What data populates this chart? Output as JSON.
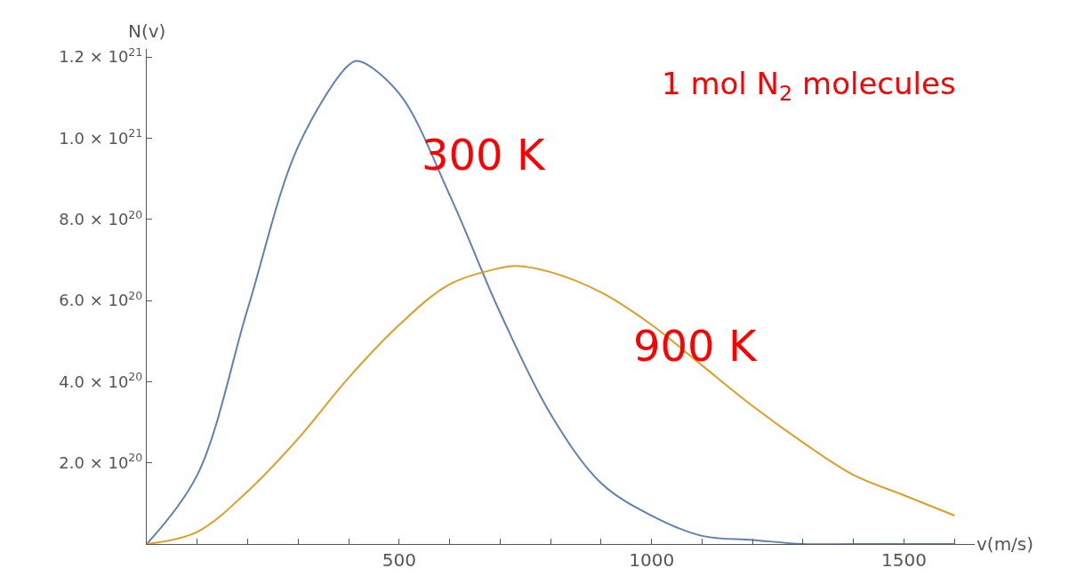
{
  "chart_data": {
    "type": "line",
    "xlabel": "v(m/s)",
    "ylabel": "N(v)",
    "x": [
      0,
      100,
      200,
      300,
      400,
      420,
      500,
      600,
      700,
      800,
      900,
      1000,
      1100,
      1200,
      1300,
      1400,
      1500,
      1600
    ],
    "series": [
      {
        "name": "300 K",
        "color": "#5e81b5",
        "values": [
          0,
          1.7e+20,
          5.8e+20,
          9.8e+20,
          1.18e+21,
          1.19e+21,
          1.11e+21,
          8.6e+20,
          5.7e+20,
          3.2e+20,
          1.5e+20,
          7e+19,
          2e+19,
          1e+19,
          0,
          0,
          0,
          0
        ]
      },
      {
        "name": "900 K",
        "color": "#e19c24",
        "x": [
          0,
          100,
          200,
          300,
          400,
          500,
          600,
          700,
          730,
          800,
          900,
          1000,
          1100,
          1200,
          1300,
          1400,
          1500,
          1600
        ],
        "values": [
          0,
          3e+19,
          1.3e+20,
          2.6e+20,
          4.1e+20,
          5.4e+20,
          6.4e+20,
          6.8e+20,
          6.85e+20,
          6.7e+20,
          6.2e+20,
          5.4e+20,
          4.4e+20,
          3.4e+20,
          2.5e+20,
          1.7e+20,
          1.2e+20,
          7e+19
        ]
      }
    ],
    "xlim": [
      0,
      1640
    ],
    "ylim": [
      0,
      1.22e+21
    ],
    "xticks": [
      {
        "value": 100,
        "label": null
      },
      {
        "value": 200,
        "label": null
      },
      {
        "value": 300,
        "label": null
      },
      {
        "value": 400,
        "label": null
      },
      500,
      {
        "value": 600,
        "label": null
      },
      {
        "value": 700,
        "label": null
      },
      {
        "value": 800,
        "label": null
      },
      {
        "value": 900,
        "label": null
      },
      1000,
      {
        "value": 1100,
        "label": null
      },
      {
        "value": 1200,
        "label": null
      },
      {
        "value": 1300,
        "label": null
      },
      {
        "value": 1400,
        "label": null
      },
      1500,
      {
        "value": 1600,
        "label": null
      }
    ],
    "yticks": [
      {
        "value": 2e+20,
        "label": "2.0 × 10$^{20}$"
      },
      {
        "value": 4e+20,
        "label": "4.0 × 10$^{20}$"
      },
      {
        "value": 6e+20,
        "label": "6.0 × 10$^{20}$"
      },
      {
        "value": 8e+20,
        "label": "8.0 × 10$^{20}$"
      },
      {
        "value": 1e+21,
        "label": "1.0 × 10$^{21}$"
      },
      {
        "value": 1.2e+21,
        "label": "1.2 × 10$^{21}$"
      }
    ],
    "annotations": [
      "1 mol N$_{2}$ molecules"
    ],
    "legend": false,
    "marker": "none",
    "line_style": "solid"
  }
}
